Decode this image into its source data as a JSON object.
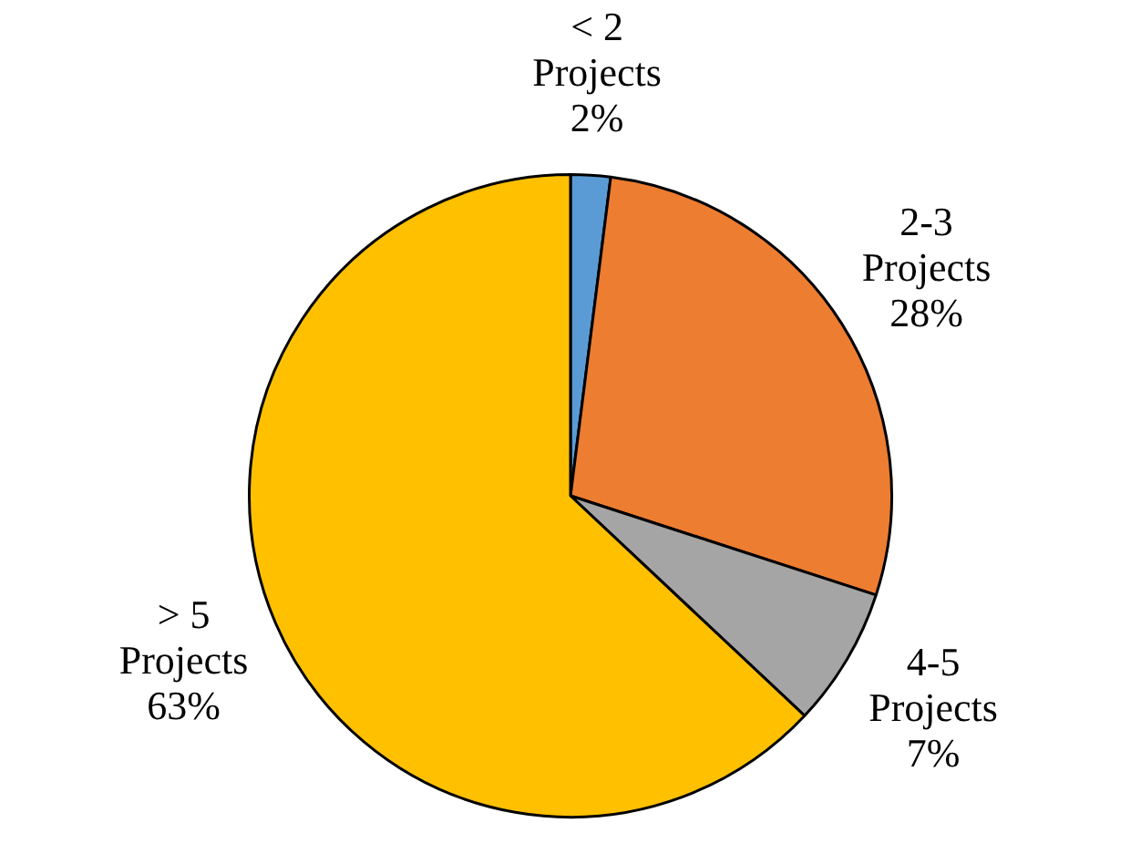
{
  "chart_data": {
    "type": "pie",
    "categories": [
      "< 2 Projects",
      "2-3 Projects",
      "4-5 Projects",
      "> 5 Projects"
    ],
    "values": [
      2,
      28,
      7,
      63
    ],
    "colors": [
      "#5b9bd5",
      "#ed7d31",
      "#a5a5a5",
      "#ffc000"
    ],
    "value_labels": [
      "2%",
      "28%",
      "7%",
      "63%"
    ],
    "legend": false
  }
}
